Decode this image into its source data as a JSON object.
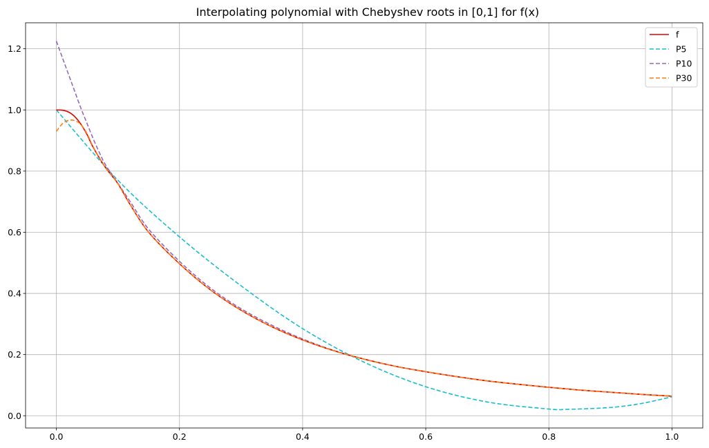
{
  "chart_data": {
    "type": "line",
    "title": "Interpolating polynomial with Chebyshev roots in [0,1] for f(x)",
    "xlabel": "",
    "ylabel": "",
    "xlim": [
      -0.05,
      1.05
    ],
    "ylim": [
      -0.04,
      1.285
    ],
    "grid": true,
    "legend_position": "top-right",
    "x_ticks": [
      0.0,
      0.2,
      0.4,
      0.6,
      0.8,
      1.0
    ],
    "x_tick_labels": [
      "0.0",
      "0.2",
      "0.4",
      "0.6",
      "0.8",
      "1.0"
    ],
    "y_ticks": [
      0.0,
      0.2,
      0.4,
      0.6,
      0.8,
      1.0,
      1.2
    ],
    "y_tick_labels": [
      "0.0",
      "0.2",
      "0.4",
      "0.6",
      "0.8",
      "1.0",
      "1.2"
    ],
    "series": [
      {
        "name": "f",
        "color": "#e00000",
        "dash": "solid",
        "x": [
          0.0,
          0.01,
          0.02,
          0.03,
          0.04,
          0.05,
          0.06,
          0.08,
          0.1,
          0.12,
          0.15,
          0.2,
          0.25,
          0.3,
          0.35,
          0.4,
          0.45,
          0.5,
          0.55,
          0.6,
          0.65,
          0.7,
          0.75,
          0.8,
          0.85,
          0.9,
          0.95,
          1.0
        ],
        "y": [
          1.0,
          0.999,
          0.993,
          0.978,
          0.953,
          0.919,
          0.877,
          0.811,
          0.759,
          0.69,
          0.6,
          0.497,
          0.412,
          0.345,
          0.291,
          0.248,
          0.213,
          0.185,
          0.162,
          0.144,
          0.128,
          0.114,
          0.103,
          0.093,
          0.084,
          0.077,
          0.07,
          0.064
        ]
      },
      {
        "name": "P5",
        "color": "#17becf",
        "dash": "dashed",
        "x": [
          0.0,
          0.1,
          0.2,
          0.3,
          0.4,
          0.5,
          0.6,
          0.7,
          0.8,
          0.83,
          0.9,
          0.95,
          1.0
        ],
        "y": [
          1.0,
          0.77,
          0.585,
          0.425,
          0.285,
          0.175,
          0.095,
          0.045,
          0.022,
          0.021,
          0.027,
          0.04,
          0.062
        ]
      },
      {
        "name": "P10",
        "color": "#9467bd",
        "dash": "dashed",
        "x": [
          0.0,
          0.01,
          0.02,
          0.03,
          0.04,
          0.05,
          0.06,
          0.07,
          0.08,
          0.1,
          0.12,
          0.15,
          0.2,
          0.25,
          0.3,
          0.35,
          0.4,
          0.45,
          0.5,
          0.55,
          0.6,
          0.65,
          0.7,
          0.75,
          0.8,
          0.85,
          0.9,
          0.95,
          1.0
        ],
        "y": [
          1.225,
          1.17,
          1.115,
          1.06,
          1.005,
          0.955,
          0.905,
          0.86,
          0.82,
          0.76,
          0.7,
          0.61,
          0.505,
          0.418,
          0.35,
          0.296,
          0.251,
          0.214,
          0.185,
          0.162,
          0.144,
          0.128,
          0.114,
          0.103,
          0.093,
          0.084,
          0.077,
          0.07,
          0.064
        ]
      },
      {
        "name": "P30",
        "color": "#ff7f0e",
        "dash": "dashed",
        "x": [
          0.0,
          0.01,
          0.02,
          0.03,
          0.04,
          0.05,
          0.06,
          0.08,
          0.1,
          0.12,
          0.15,
          0.2,
          0.25,
          0.3,
          0.35,
          0.4,
          0.45,
          0.5,
          0.55,
          0.6,
          0.65,
          0.7,
          0.75,
          0.8,
          0.85,
          0.9,
          0.95,
          1.0
        ],
        "y": [
          0.93,
          0.955,
          0.966,
          0.965,
          0.952,
          0.922,
          0.879,
          0.811,
          0.759,
          0.69,
          0.6,
          0.497,
          0.412,
          0.345,
          0.291,
          0.248,
          0.213,
          0.185,
          0.162,
          0.144,
          0.128,
          0.114,
          0.103,
          0.093,
          0.084,
          0.077,
          0.07,
          0.064
        ]
      }
    ]
  }
}
